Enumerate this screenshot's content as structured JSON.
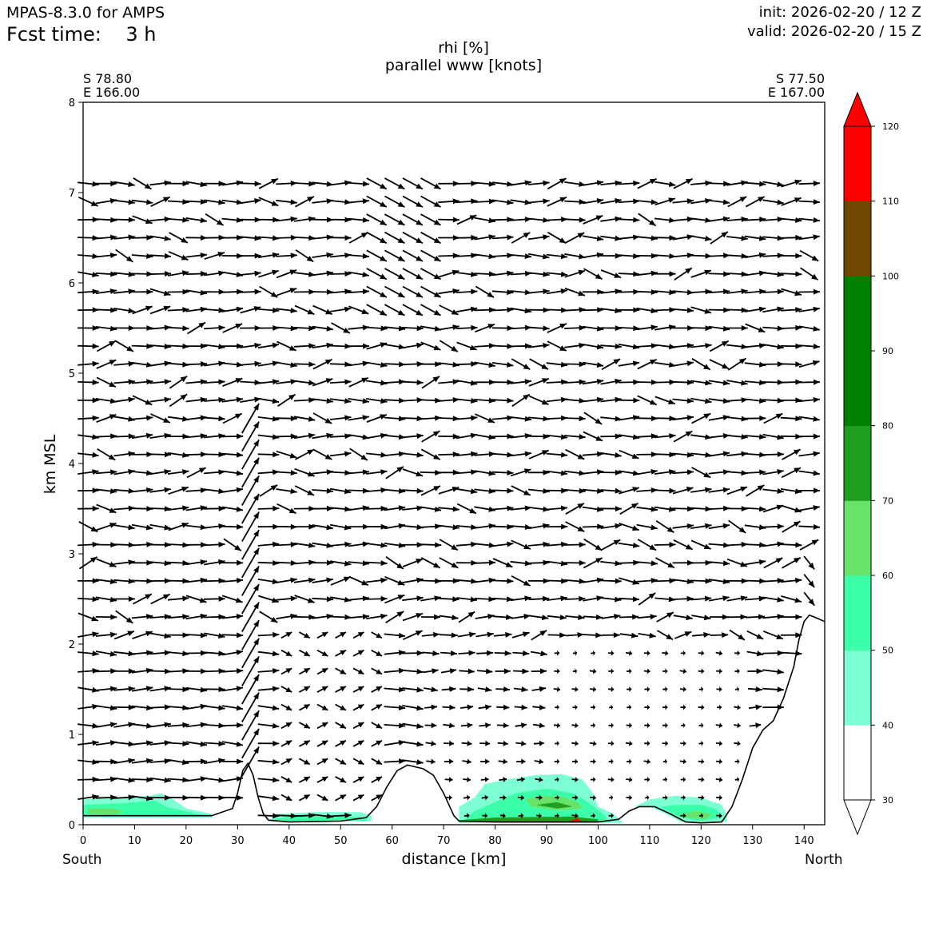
{
  "header": {
    "model": "MPAS-8.3.0 for AMPS",
    "fcst": "Fcst time:    3 h",
    "init": "init: 2026-02-20 / 12 Z",
    "valid": "valid: 2026-02-20 / 15 Z"
  },
  "chart_data": {
    "type": "cross-section",
    "title": "rhi [%]",
    "subtitle": "parallel www [knots]",
    "xlabel": "distance [km]",
    "ylabel": "km MSL",
    "left_end": {
      "direction": "South",
      "lat": "S 78.80",
      "lon": "E 166.00"
    },
    "right_end": {
      "direction": "North",
      "lat": "S 77.50",
      "lon": "E 167.00"
    },
    "xlim": [
      0,
      144
    ],
    "ylim": [
      0,
      8
    ],
    "xticks": [
      "0",
      "10",
      "20",
      "30",
      "40",
      "50",
      "60",
      "70",
      "80",
      "90",
      "100",
      "110",
      "120",
      "130",
      "140"
    ],
    "yticks": [
      "0",
      "1",
      "2",
      "3",
      "4",
      "5",
      "6",
      "7",
      "8"
    ],
    "colorbar": {
      "ticks": [
        "30",
        "40",
        "50",
        "60",
        "70",
        "80",
        "90",
        "100",
        "110",
        "120"
      ],
      "levels": [
        30,
        40,
        50,
        60,
        70,
        80,
        90,
        100,
        110,
        120
      ],
      "colors": [
        "#ffffff",
        "#7fffd4",
        "#3cffaa",
        "#69e26a",
        "#209e20",
        "#008000",
        "#008000",
        "#704700",
        "#ff0000"
      ],
      "extend": "both"
    },
    "terrain": [
      [
        0,
        0.1
      ],
      [
        10,
        0.1
      ],
      [
        20,
        0.1
      ],
      [
        25,
        0.1
      ],
      [
        29,
        0.18
      ],
      [
        30,
        0.35
      ],
      [
        31,
        0.6
      ],
      [
        32,
        0.68
      ],
      [
        33,
        0.55
      ],
      [
        34,
        0.3
      ],
      [
        35,
        0.12
      ],
      [
        36,
        0.05
      ],
      [
        40,
        0.03
      ],
      [
        50,
        0.04
      ],
      [
        55,
        0.08
      ],
      [
        57,
        0.2
      ],
      [
        59,
        0.42
      ],
      [
        61,
        0.6
      ],
      [
        63,
        0.66
      ],
      [
        66,
        0.62
      ],
      [
        68,
        0.55
      ],
      [
        70,
        0.35
      ],
      [
        72,
        0.1
      ],
      [
        73,
        0.04
      ],
      [
        80,
        0.03
      ],
      [
        90,
        0.03
      ],
      [
        100,
        0.03
      ],
      [
        104,
        0.06
      ],
      [
        106,
        0.15
      ],
      [
        108,
        0.2
      ],
      [
        111,
        0.2
      ],
      [
        114,
        0.12
      ],
      [
        117,
        0.03
      ],
      [
        120,
        0.02
      ],
      [
        124,
        0.03
      ],
      [
        126,
        0.2
      ],
      [
        128,
        0.5
      ],
      [
        130,
        0.85
      ],
      [
        132,
        1.05
      ],
      [
        134,
        1.15
      ],
      [
        136,
        1.4
      ],
      [
        138,
        1.75
      ],
      [
        139,
        2.05
      ],
      [
        140,
        2.25
      ],
      [
        141,
        2.32
      ],
      [
        142,
        2.3
      ],
      [
        144,
        2.25
      ]
    ],
    "rhi_regions": [
      {
        "level": 40,
        "points": [
          [
            0,
            0.08
          ],
          [
            0,
            0.28
          ],
          [
            6,
            0.3
          ],
          [
            13,
            0.32
          ],
          [
            15,
            0.35
          ],
          [
            17,
            0.3
          ],
          [
            20,
            0.18
          ],
          [
            25,
            0.12
          ],
          [
            25,
            0.08
          ]
        ]
      },
      {
        "level": 50,
        "points": [
          [
            0,
            0.1
          ],
          [
            0,
            0.22
          ],
          [
            8,
            0.24
          ],
          [
            14,
            0.27
          ],
          [
            16,
            0.2
          ],
          [
            22,
            0.12
          ],
          [
            24,
            0.1
          ]
        ]
      },
      {
        "level": 60,
        "points": [
          [
            1,
            0.12
          ],
          [
            1,
            0.18
          ],
          [
            6,
            0.18
          ],
          [
            8,
            0.14
          ],
          [
            6,
            0.11
          ]
        ]
      },
      {
        "level": 40,
        "points": [
          [
            36,
            0.05
          ],
          [
            38,
            0.12
          ],
          [
            45,
            0.14
          ],
          [
            54,
            0.14
          ],
          [
            56,
            0.1
          ],
          [
            56,
            0.04
          ],
          [
            36,
            0.04
          ]
        ]
      },
      {
        "level": 50,
        "points": [
          [
            37,
            0.06
          ],
          [
            40,
            0.09
          ],
          [
            50,
            0.1
          ],
          [
            55,
            0.08
          ],
          [
            55,
            0.04
          ],
          [
            37,
            0.04
          ]
        ]
      },
      {
        "level": 40,
        "points": [
          [
            73,
            0.04
          ],
          [
            73,
            0.2
          ],
          [
            76,
            0.3
          ],
          [
            78,
            0.45
          ],
          [
            82,
            0.5
          ],
          [
            88,
            0.55
          ],
          [
            93,
            0.56
          ],
          [
            97,
            0.5
          ],
          [
            99,
            0.35
          ],
          [
            100,
            0.2
          ],
          [
            103,
            0.12
          ],
          [
            104,
            0.06
          ],
          [
            105,
            0.02
          ],
          [
            73,
            0.02
          ]
        ]
      },
      {
        "level": 50,
        "points": [
          [
            74,
            0.05
          ],
          [
            76,
            0.15
          ],
          [
            80,
            0.25
          ],
          [
            84,
            0.35
          ],
          [
            90,
            0.4
          ],
          [
            95,
            0.35
          ],
          [
            98,
            0.25
          ],
          [
            101,
            0.12
          ],
          [
            102,
            0.05
          ],
          [
            74,
            0.03
          ]
        ]
      },
      {
        "level": 60,
        "points": [
          [
            86,
            0.28
          ],
          [
            89,
            0.32
          ],
          [
            93,
            0.31
          ],
          [
            96,
            0.25
          ],
          [
            97,
            0.18
          ],
          [
            92,
            0.16
          ],
          [
            87,
            0.2
          ]
        ]
      },
      {
        "level": 70,
        "points": [
          [
            88,
            0.22
          ],
          [
            92,
            0.25
          ],
          [
            95,
            0.2
          ],
          [
            92,
            0.18
          ]
        ]
      },
      {
        "level": 70,
        "points": [
          [
            73,
            0.05
          ],
          [
            80,
            0.08
          ],
          [
            95,
            0.09
          ],
          [
            100,
            0.06
          ],
          [
            100,
            0.03
          ],
          [
            73,
            0.03
          ]
        ]
      },
      {
        "level": 110,
        "points": [
          [
            94,
            0.03
          ],
          [
            96,
            0.07
          ],
          [
            97,
            0.03
          ]
        ]
      },
      {
        "level": 40,
        "points": [
          [
            107,
            0.2
          ],
          [
            110,
            0.28
          ],
          [
            115,
            0.32
          ],
          [
            120,
            0.3
          ],
          [
            124,
            0.22
          ],
          [
            125,
            0.1
          ],
          [
            125,
            0.03
          ],
          [
            116,
            0.03
          ],
          [
            114,
            0.1
          ],
          [
            110,
            0.2
          ]
        ]
      },
      {
        "level": 50,
        "points": [
          [
            112,
            0.2
          ],
          [
            116,
            0.22
          ],
          [
            120,
            0.22
          ],
          [
            123,
            0.17
          ],
          [
            124,
            0.08
          ],
          [
            120,
            0.04
          ],
          [
            116,
            0.08
          ]
        ]
      },
      {
        "level": 60,
        "points": [
          [
            116,
            0.12
          ],
          [
            119,
            0.15
          ],
          [
            122,
            0.12
          ],
          [
            121,
            0.06
          ],
          [
            117,
            0.08
          ]
        ]
      }
    ]
  }
}
